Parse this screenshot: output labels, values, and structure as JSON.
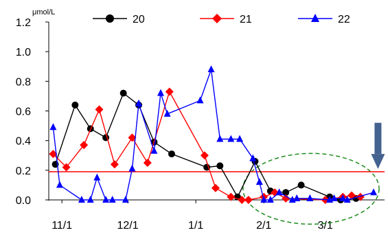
{
  "chart_data": {
    "type": "line",
    "title": "",
    "xlabel": "",
    "ylabel": "",
    "unit_label": "μmol/L",
    "xlim": [
      "2010-10-26",
      "2011-03-28"
    ],
    "ylim": [
      0,
      1.2
    ],
    "y_ticks": [
      "0.0",
      "0.2",
      "0.4",
      "0.6",
      "0.8",
      "1.0",
      "1.2"
    ],
    "x_ticks": [
      {
        "label": "11/1",
        "date": "2010-11-01"
      },
      {
        "label": "12/1",
        "date": "2010-12-01"
      },
      {
        "label": "1/1",
        "date": "2011-01-01"
      },
      {
        "label": "2/1",
        "date": "2011-02-01"
      },
      {
        "label": "3/1",
        "date": "2011-03-01"
      }
    ],
    "grid": false,
    "legend_position": "top",
    "reference_line": {
      "y": 0.19,
      "color": "#ff0000"
    },
    "series": [
      {
        "name": "20",
        "color": "#000000",
        "marker": "circle",
        "points": [
          {
            "x": "2010-10-29",
            "y": 0.24
          },
          {
            "x": "2010-11-07",
            "y": 0.64
          },
          {
            "x": "2010-11-14",
            "y": 0.48
          },
          {
            "x": "2010-11-21",
            "y": 0.42
          },
          {
            "x": "2010-11-29",
            "y": 0.72
          },
          {
            "x": "2010-12-06",
            "y": 0.64
          },
          {
            "x": "2010-12-13",
            "y": 0.39
          },
          {
            "x": "2010-12-21",
            "y": 0.31
          },
          {
            "x": "2011-01-06",
            "y": 0.22
          },
          {
            "x": "2011-01-12",
            "y": 0.23
          },
          {
            "x": "2011-01-20",
            "y": 0.02
          },
          {
            "x": "2011-01-28",
            "y": 0.26
          },
          {
            "x": "2011-02-04",
            "y": 0.06
          },
          {
            "x": "2011-02-11",
            "y": 0.05
          },
          {
            "x": "2011-02-18",
            "y": 0.1
          },
          {
            "x": "2011-03-03",
            "y": 0.02
          },
          {
            "x": "2011-03-08",
            "y": 0.0
          },
          {
            "x": "2011-03-15",
            "y": 0.01
          }
        ]
      },
      {
        "name": "21",
        "color": "#ff0000",
        "marker": "diamond",
        "points": [
          {
            "x": "2010-10-28",
            "y": 0.31
          },
          {
            "x": "2010-11-03",
            "y": 0.22
          },
          {
            "x": "2010-11-11",
            "y": 0.37
          },
          {
            "x": "2010-11-18",
            "y": 0.61
          },
          {
            "x": "2010-11-25",
            "y": 0.24
          },
          {
            "x": "2010-12-03",
            "y": 0.42
          },
          {
            "x": "2010-12-10",
            "y": 0.25
          },
          {
            "x": "2010-12-20",
            "y": 0.73
          },
          {
            "x": "2011-01-05",
            "y": 0.3
          },
          {
            "x": "2011-01-10",
            "y": 0.08
          },
          {
            "x": "2011-01-17",
            "y": 0.02
          },
          {
            "x": "2011-01-22",
            "y": 0.0
          },
          {
            "x": "2011-01-25",
            "y": 0.0
          },
          {
            "x": "2011-02-01",
            "y": 0.02
          },
          {
            "x": "2011-02-06",
            "y": 0.05
          },
          {
            "x": "2011-02-11",
            "y": 0.01
          },
          {
            "x": "2011-03-01",
            "y": 0.0
          },
          {
            "x": "2011-03-09",
            "y": 0.02
          },
          {
            "x": "2011-03-13",
            "y": 0.03
          },
          {
            "x": "2011-03-17",
            "y": 0.02
          }
        ]
      },
      {
        "name": "22",
        "color": "#0000ff",
        "marker": "triangle",
        "points": [
          {
            "x": "2010-10-28",
            "y": 0.49
          },
          {
            "x": "2010-10-31",
            "y": 0.1
          },
          {
            "x": "2010-11-10",
            "y": 0.0
          },
          {
            "x": "2010-11-14",
            "y": 0.0
          },
          {
            "x": "2010-11-17",
            "y": 0.15
          },
          {
            "x": "2010-11-21",
            "y": 0.0
          },
          {
            "x": "2010-11-24",
            "y": 0.0
          },
          {
            "x": "2010-11-30",
            "y": 0.0
          },
          {
            "x": "2010-12-03",
            "y": 0.21
          },
          {
            "x": "2010-12-06",
            "y": 0.65
          },
          {
            "x": "2010-12-13",
            "y": 0.33
          },
          {
            "x": "2010-12-16",
            "y": 0.72
          },
          {
            "x": "2010-12-19",
            "y": 0.58
          },
          {
            "x": "2011-01-03",
            "y": 0.67
          },
          {
            "x": "2011-01-08",
            "y": 0.88
          },
          {
            "x": "2011-01-12",
            "y": 0.41
          },
          {
            "x": "2011-01-17",
            "y": 0.41
          },
          {
            "x": "2011-01-21",
            "y": 0.41
          },
          {
            "x": "2011-01-27",
            "y": 0.28
          },
          {
            "x": "2011-01-30",
            "y": 0.12
          },
          {
            "x": "2011-02-01",
            "y": 0.0
          },
          {
            "x": "2011-02-04",
            "y": 0.0
          },
          {
            "x": "2011-02-08",
            "y": 0.05
          },
          {
            "x": "2011-02-14",
            "y": 0.0
          },
          {
            "x": "2011-02-16",
            "y": 0.01
          },
          {
            "x": "2011-02-22",
            "y": 0.01
          },
          {
            "x": "2011-03-03",
            "y": 0.0
          },
          {
            "x": "2011-03-05",
            "y": 0.01
          },
          {
            "x": "2011-03-09",
            "y": 0.01
          },
          {
            "x": "2011-03-11",
            "y": 0.0
          },
          {
            "x": "2011-03-23",
            "y": 0.05
          }
        ]
      }
    ],
    "annotations": [
      {
        "type": "dashed-ellipse",
        "color": "#1e8c1e",
        "description": "highlights near-zero values Feb–Mar"
      },
      {
        "type": "down-arrow",
        "color": "#44628f",
        "date": "2011-03-25",
        "y": 0.2
      }
    ]
  }
}
